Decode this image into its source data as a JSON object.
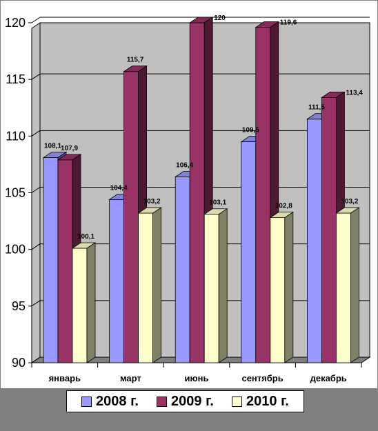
{
  "chart_data": {
    "type": "bar",
    "categories": [
      "январь",
      "март",
      "июнь",
      "сентябрь",
      "декабрь"
    ],
    "series": [
      {
        "name": "2008 г.",
        "color": "#9999ff",
        "values": [
          108.1,
          104.4,
          106.4,
          109.5,
          111.5
        ],
        "labels": [
          "108,1",
          "104,4",
          "106,4",
          "109,5",
          "111,5"
        ]
      },
      {
        "name": "2009 г.",
        "color": "#993366",
        "values": [
          107.9,
          115.7,
          120,
          119.6,
          113.4
        ],
        "labels": [
          "107,9",
          "115,7",
          "120",
          "119,6",
          "113,4"
        ]
      },
      {
        "name": "2010 г.",
        "color": "#ffffcc",
        "values": [
          100.1,
          103.2,
          103.1,
          102.8,
          103.2
        ],
        "labels": [
          "100,1",
          "103,2",
          "103,1",
          "102,8",
          "103,2"
        ]
      }
    ],
    "yticks": [
      "90",
      "95",
      "100",
      "105",
      "110",
      "115",
      "120"
    ],
    "ylim": [
      90,
      120
    ],
    "grid": true,
    "legend_position": "bottom",
    "colors": {
      "wall": "#c0c0c0",
      "floor": "#808080",
      "background": "#808080"
    }
  }
}
